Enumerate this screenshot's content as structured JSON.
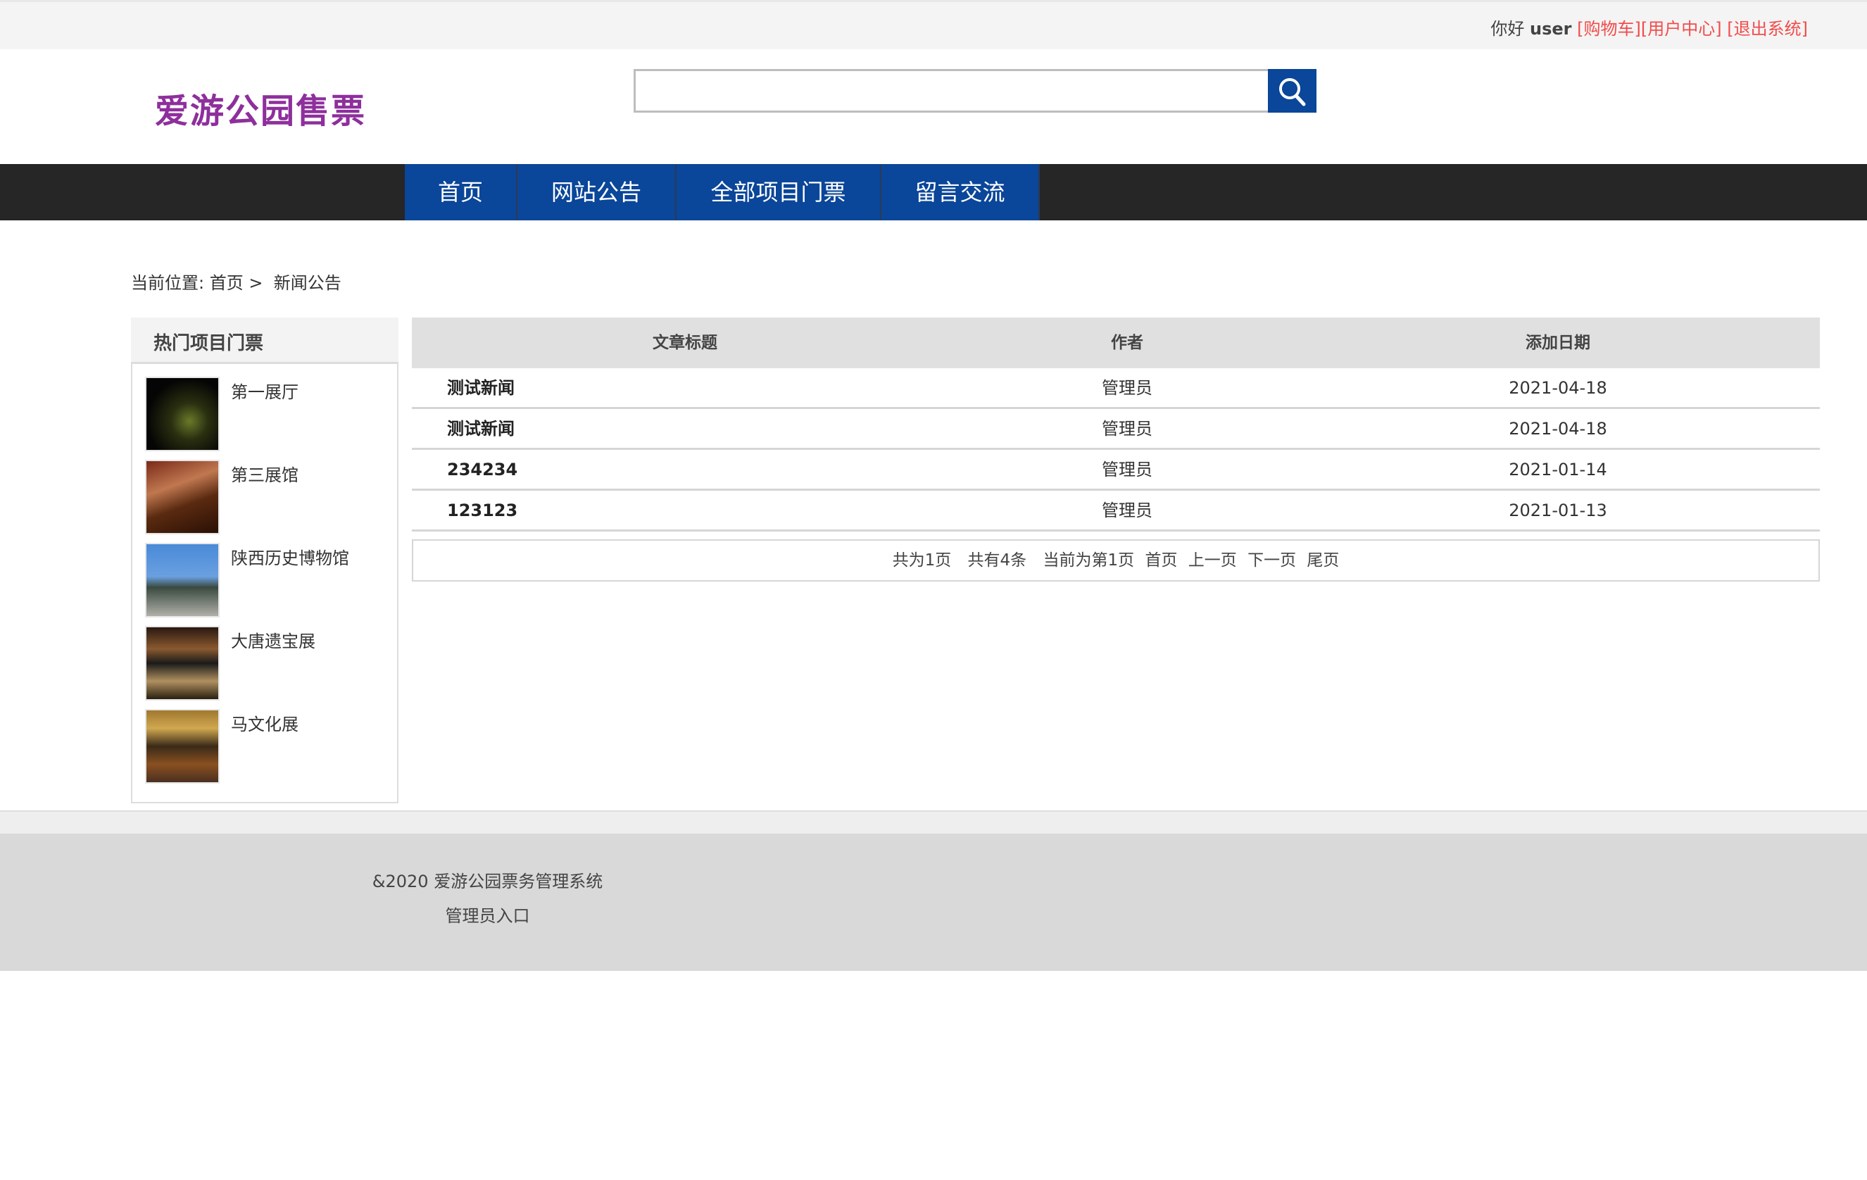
{
  "topbar": {
    "greeting": "你好",
    "username": "user",
    "cart": "[购物车]",
    "user_center": "[用户中心]",
    "logout": "[退出系统]"
  },
  "logo": "爱游公园售票",
  "search": {
    "value": "",
    "placeholder": ""
  },
  "colors": {
    "nav_active": "#0a4699",
    "nav_bar": "#262626",
    "logo": "#8e2f9c",
    "link_red": "#f24b4b"
  },
  "nav": [
    "首页",
    "网站公告",
    "全部项目门票",
    "留言交流"
  ],
  "breadcrumb": {
    "label": "当前位置:",
    "home": "首页",
    "sep": ">",
    "current": "新闻公告"
  },
  "sidebar": {
    "title": "热门项目门票",
    "items": [
      "第一展厅",
      "第三展馆",
      "陕西历史博物馆",
      "大唐遗宝展",
      "马文化展"
    ]
  },
  "table": {
    "headers": [
      "文章标题",
      "作者",
      "添加日期"
    ],
    "rows": [
      [
        "测试新闻",
        "管理员",
        "2021-04-18"
      ],
      [
        "测试新闻",
        "管理员",
        "2021-04-18"
      ],
      [
        "234234",
        "管理员",
        "2021-01-14"
      ],
      [
        "123123",
        "管理员",
        "2021-01-13"
      ]
    ]
  },
  "pager": {
    "pages": "共为1页",
    "count": "共有4条",
    "current": "当前为第1页",
    "first": "首页",
    "prev": "上一页",
    "next": "下一页",
    "last": "尾页"
  },
  "footer": {
    "copyright": "&2020 爱游公园票务管理系统",
    "admin": "管理员入口"
  }
}
